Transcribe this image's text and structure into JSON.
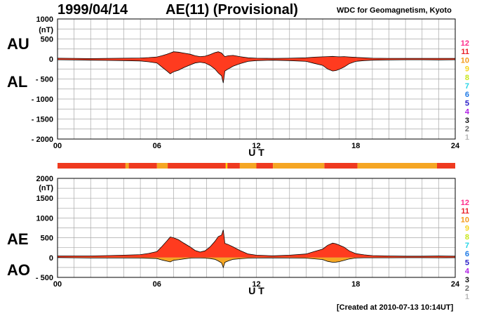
{
  "header": {
    "date": "1999/04/14",
    "title": "AE(11) (Provisional)",
    "source": "WDC for Geomagnetism, Kyoto"
  },
  "footer": {
    "created": "[Created at 2010-07-13 10:14UT]"
  },
  "colors": {
    "upper_fill": "#ff3b1f",
    "lower_fill": "#f5a623",
    "band_red": "#ef3a1f",
    "band_orange": "#f5a623",
    "band_yellow": "#ffd400",
    "grid": "#a8a8a8"
  },
  "station_count_legend": [
    {
      "label": "12",
      "color": "#ff2d8a"
    },
    {
      "label": "11",
      "color": "#e8202a"
    },
    {
      "label": "10",
      "color": "#f59a1a"
    },
    {
      "label": "9",
      "color": "#f7d51e"
    },
    {
      "label": "8",
      "color": "#c8e61e"
    },
    {
      "label": "7",
      "color": "#26d4e6"
    },
    {
      "label": "6",
      "color": "#1e7ae6"
    },
    {
      "label": "5",
      "color": "#2a1ec8"
    },
    {
      "label": "4",
      "color": "#b01ee6"
    },
    {
      "label": "3",
      "color": "#111111"
    },
    {
      "label": "2",
      "color": "#6a6a6a"
    },
    {
      "label": "1",
      "color": "#b8b8b8"
    }
  ],
  "station_count_band": [
    {
      "start": 0,
      "end": 4.1,
      "count": "11"
    },
    {
      "start": 4.1,
      "end": 4.3,
      "count": "10"
    },
    {
      "start": 4.3,
      "end": 6.0,
      "count": "11"
    },
    {
      "start": 6.0,
      "end": 6.65,
      "count": "10"
    },
    {
      "start": 6.65,
      "end": 10.15,
      "count": "11"
    },
    {
      "start": 10.15,
      "end": 10.25,
      "count": "9"
    },
    {
      "start": 10.25,
      "end": 11.0,
      "count": "11"
    },
    {
      "start": 11.0,
      "end": 12.0,
      "count": "10"
    },
    {
      "start": 12.0,
      "end": 13.0,
      "count": "11"
    },
    {
      "start": 13.0,
      "end": 16.1,
      "count": "10"
    },
    {
      "start": 16.1,
      "end": 18.1,
      "count": "11"
    },
    {
      "start": 18.1,
      "end": 22.9,
      "count": "10"
    },
    {
      "start": 22.9,
      "end": 24.0,
      "count": "11"
    }
  ],
  "chart_data": [
    {
      "type": "area",
      "panel": "AU/AL",
      "upper_label": "AU",
      "lower_label": "AL",
      "y_unit": "(nT)",
      "xlabel": "U T",
      "xlim": [
        0,
        24
      ],
      "ylim": [
        -2000,
        1000
      ],
      "x_ticks": [
        0,
        6,
        12,
        18,
        24
      ],
      "x_tick_labels": [
        "00",
        "06",
        "12",
        "18",
        "24"
      ],
      "y_ticks": [
        1000,
        500,
        0,
        -500,
        -1000,
        -1500,
        -2000
      ],
      "y_tick_labels": [
        "1000",
        "500",
        "0",
        "- 500",
        "- 1000",
        "- 1500",
        "- 2000"
      ],
      "grid": true,
      "series": [
        {
          "name": "AU",
          "x": [
            0,
            1,
            2,
            3,
            4,
            5,
            5.5,
            6,
            6.3,
            6.6,
            6.8,
            7.0,
            7.3,
            7.6,
            8.0,
            8.3,
            8.6,
            8.9,
            9.2,
            9.5,
            9.7,
            9.9,
            10.0,
            10.1,
            10.3,
            10.6,
            11.0,
            11.5,
            12,
            13,
            14,
            15,
            15.5,
            16,
            16.3,
            16.6,
            16.8,
            17.0,
            17.3,
            17.6,
            18.0,
            18.5,
            19,
            20,
            21,
            22,
            23,
            24
          ],
          "values": [
            20,
            15,
            10,
            15,
            20,
            25,
            35,
            50,
            80,
            120,
            150,
            180,
            170,
            150,
            120,
            80,
            60,
            70,
            110,
            160,
            180,
            150,
            100,
            60,
            80,
            90,
            60,
            30,
            20,
            15,
            20,
            30,
            45,
            55,
            60,
            65,
            60,
            55,
            60,
            50,
            40,
            30,
            20,
            15,
            15,
            15,
            15,
            15
          ]
        },
        {
          "name": "AL",
          "x": [
            0,
            1,
            2,
            3,
            4,
            5,
            5.5,
            6,
            6.3,
            6.6,
            6.8,
            7.0,
            7.3,
            7.6,
            8.0,
            8.3,
            8.6,
            8.9,
            9.2,
            9.5,
            9.7,
            9.9,
            10.0,
            10.1,
            10.3,
            10.6,
            11.0,
            11.5,
            12,
            13,
            14,
            15,
            15.5,
            16,
            16.3,
            16.6,
            16.8,
            17.0,
            17.3,
            17.6,
            18.0,
            18.5,
            19,
            20,
            21,
            22,
            23,
            24
          ],
          "values": [
            -20,
            -25,
            -30,
            -35,
            -40,
            -50,
            -70,
            -100,
            -200,
            -300,
            -370,
            -320,
            -280,
            -220,
            -150,
            -100,
            -80,
            -100,
            -160,
            -250,
            -350,
            -420,
            -600,
            -300,
            -250,
            -180,
            -120,
            -60,
            -40,
            -30,
            -40,
            -60,
            -110,
            -160,
            -250,
            -300,
            -290,
            -260,
            -200,
            -120,
            -60,
            -40,
            -30,
            -25,
            -20,
            -20,
            -25,
            -20
          ]
        }
      ]
    },
    {
      "type": "area",
      "panel": "AE/AO",
      "upper_label": "AE",
      "lower_label": "AO",
      "y_unit": "(nT)",
      "xlabel": "U T",
      "xlim": [
        0,
        24
      ],
      "ylim": [
        -500,
        2000
      ],
      "x_ticks": [
        0,
        6,
        12,
        18,
        24
      ],
      "x_tick_labels": [
        "00",
        "06",
        "12",
        "18",
        "24"
      ],
      "y_ticks": [
        2000,
        1500,
        1000,
        500,
        0,
        -500
      ],
      "y_tick_labels": [
        "2000",
        "1500",
        "1000",
        "500",
        "0",
        "- 500"
      ],
      "grid": true,
      "series": [
        {
          "name": "AE",
          "x": [
            0,
            1,
            2,
            3,
            4,
            5,
            5.5,
            6,
            6.3,
            6.6,
            6.8,
            7.0,
            7.3,
            7.6,
            8.0,
            8.3,
            8.6,
            8.9,
            9.2,
            9.5,
            9.7,
            9.9,
            10.0,
            10.1,
            10.3,
            10.6,
            11.0,
            11.5,
            12,
            13,
            14,
            15,
            15.5,
            16,
            16.3,
            16.6,
            16.8,
            17.0,
            17.3,
            17.6,
            18.0,
            18.5,
            19,
            20,
            21,
            22,
            23,
            24
          ],
          "values": [
            40,
            40,
            40,
            50,
            60,
            75,
            105,
            150,
            280,
            420,
            520,
            500,
            450,
            370,
            270,
            180,
            140,
            170,
            270,
            410,
            530,
            570,
            700,
            360,
            330,
            270,
            180,
            90,
            60,
            45,
            60,
            90,
            155,
            215,
            310,
            365,
            350,
            315,
            260,
            170,
            100,
            70,
            50,
            40,
            35,
            35,
            40,
            35
          ]
        },
        {
          "name": "AO",
          "x": [
            0,
            1,
            2,
            3,
            4,
            5,
            5.5,
            6,
            6.3,
            6.6,
            6.8,
            7.0,
            7.3,
            7.6,
            8.0,
            8.3,
            8.6,
            8.9,
            9.2,
            9.5,
            9.7,
            9.9,
            10.0,
            10.1,
            10.3,
            10.6,
            11.0,
            11.5,
            12,
            13,
            14,
            15,
            15.5,
            16,
            16.3,
            16.6,
            16.8,
            17.0,
            17.3,
            17.6,
            18.0,
            18.5,
            19,
            20,
            21,
            22,
            23,
            24
          ],
          "values": [
            0,
            -5,
            -10,
            -10,
            -10,
            -12,
            -17,
            -25,
            -60,
            -90,
            -110,
            -70,
            -55,
            -35,
            -15,
            -10,
            -10,
            -15,
            -25,
            -45,
            -85,
            -135,
            -250,
            -120,
            -85,
            -45,
            -30,
            -15,
            -10,
            -8,
            -10,
            -15,
            -32,
            -50,
            -95,
            -118,
            -115,
            -103,
            -70,
            -35,
            -10,
            -5,
            -5,
            -5,
            -3,
            -3,
            -5,
            -3
          ]
        }
      ]
    }
  ]
}
